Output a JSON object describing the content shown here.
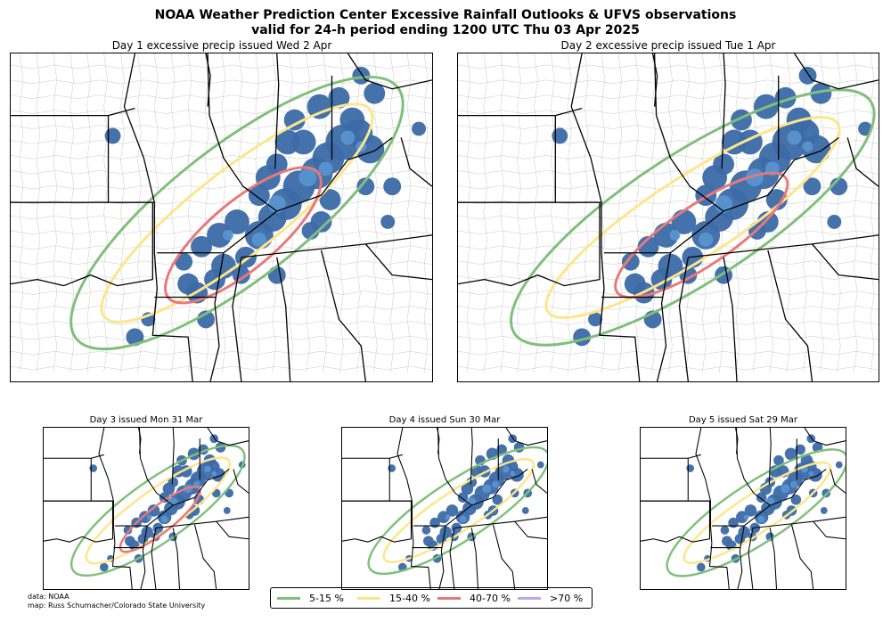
{
  "title_line1": "NOAA Weather Prediction Center Excessive Rainfall Outlooks & UFVS observations",
  "title_line2": "valid for 24-h period ending 1200 UTC Thu 03 Apr 2025",
  "panels": [
    {
      "title": "Day 1 excessive precip issued Wed 2 Apr"
    },
    {
      "title": "Day 2 excessive precip issued Tue 1 Apr"
    },
    {
      "title": "Day 3 issued Mon 31 Mar"
    },
    {
      "title": "Day 4 issued Sun 30 Mar"
    },
    {
      "title": "Day 5 issued Sat 29 Mar"
    }
  ],
  "legend": [
    {
      "label": "5-15 %",
      "color": "#7fbf7b"
    },
    {
      "label": "15-40 %",
      "color": "#fde68a"
    },
    {
      "label": "40-70 %",
      "color": "#e8797a"
    },
    {
      "label": ">70 %",
      "color": "#c3a5e6"
    }
  ],
  "observations_color": "#3c6aa8",
  "observations_core_color": "#5a96d0",
  "credit_line1": "data: NOAA",
  "credit_line2": "map: Russ Schumacher/Colorado State University"
}
